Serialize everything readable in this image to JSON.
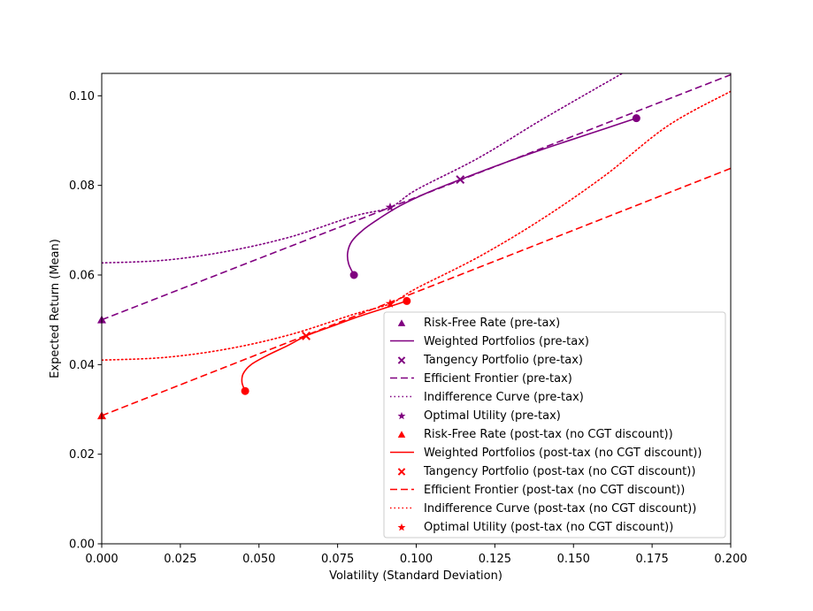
{
  "chart_data": {
    "type": "line",
    "title": "",
    "xlabel": "Volatility (Standard Deviation)",
    "ylabel": "Expected Return (Mean)",
    "xlim": [
      0.0,
      0.2
    ],
    "ylim": [
      0.0,
      0.105
    ],
    "xticks": [
      "0.000",
      "0.025",
      "0.050",
      "0.075",
      "0.100",
      "0.125",
      "0.150",
      "0.175",
      "0.200"
    ],
    "yticks": [
      "0.00",
      "0.02",
      "0.04",
      "0.06",
      "0.08",
      "0.10"
    ],
    "grid": false,
    "legend_position": "lower right",
    "colors": {
      "pre_tax": "#800080",
      "post_tax": "#ff0000"
    },
    "series": [
      {
        "name": "Risk-Free Rate (pre-tax)",
        "kind": "marker",
        "marker": "triangle",
        "color": "#800080",
        "points": [
          [
            0.0,
            0.05
          ]
        ]
      },
      {
        "name": "Weighted Portfolios (pre-tax)",
        "kind": "line",
        "style": "solid",
        "color": "#800080",
        "points": [
          [
            0.0802,
            0.06
          ],
          [
            0.0785,
            0.0625
          ],
          [
            0.0782,
            0.065
          ],
          [
            0.0795,
            0.0675
          ],
          [
            0.083,
            0.07
          ],
          [
            0.088,
            0.0725
          ],
          [
            0.095,
            0.0755
          ],
          [
            0.104,
            0.0785
          ],
          [
            0.114,
            0.0813
          ],
          [
            0.126,
            0.0845
          ],
          [
            0.14,
            0.088
          ],
          [
            0.155,
            0.0915
          ],
          [
            0.17,
            0.095
          ]
        ]
      },
      {
        "name": "Tangency Portfolio (pre-tax)",
        "kind": "marker",
        "marker": "x",
        "color": "#800080",
        "points": [
          [
            0.114,
            0.0813
          ]
        ]
      },
      {
        "name": "Efficient Frontier (pre-tax)",
        "kind": "line",
        "style": "dashed",
        "color": "#800080",
        "points": [
          [
            0.0,
            0.05
          ],
          [
            0.2,
            0.1047
          ]
        ]
      },
      {
        "name": "Indifference Curve (pre-tax)",
        "kind": "line",
        "style": "dotted",
        "color": "#800080",
        "points": [
          [
            0.0,
            0.0627
          ],
          [
            0.02,
            0.0633
          ],
          [
            0.04,
            0.0653
          ],
          [
            0.06,
            0.0685
          ],
          [
            0.08,
            0.0731
          ],
          [
            0.0917,
            0.0751
          ],
          [
            0.1,
            0.079
          ],
          [
            0.12,
            0.0862
          ],
          [
            0.14,
            0.0947
          ],
          [
            0.1655,
            0.105
          ]
        ]
      },
      {
        "name": "Optimal Utility (pre-tax)",
        "kind": "marker",
        "marker": "star",
        "color": "#800080",
        "points": [
          [
            0.0917,
            0.0751
          ]
        ]
      },
      {
        "name": "Risk-Free Rate (post-tax (no CGT discount))",
        "kind": "marker",
        "marker": "triangle",
        "color": "#ff0000",
        "points": [
          [
            0.0,
            0.0286
          ]
        ]
      },
      {
        "name": "Weighted Portfolios (post-tax (no CGT discount))",
        "kind": "line",
        "style": "solid",
        "color": "#ff0000",
        "points": [
          [
            0.0456,
            0.0341
          ],
          [
            0.0446,
            0.036
          ],
          [
            0.045,
            0.038
          ],
          [
            0.0475,
            0.04
          ],
          [
            0.0525,
            0.042
          ],
          [
            0.059,
            0.0442
          ],
          [
            0.065,
            0.0464
          ],
          [
            0.073,
            0.0485
          ],
          [
            0.082,
            0.0508
          ],
          [
            0.0917,
            0.053
          ],
          [
            0.097,
            0.0542
          ]
        ]
      },
      {
        "name": "Tangency Portfolio (post-tax (no CGT discount))",
        "kind": "marker",
        "marker": "x",
        "color": "#ff0000",
        "points": [
          [
            0.065,
            0.0464
          ]
        ]
      },
      {
        "name": "Efficient Frontier (post-tax (no CGT discount))",
        "kind": "line",
        "style": "dashed",
        "color": "#ff0000",
        "points": [
          [
            0.0,
            0.0286
          ],
          [
            0.2,
            0.0838
          ]
        ]
      },
      {
        "name": "Indifference Curve (post-tax (no CGT discount))",
        "kind": "line",
        "style": "dotted",
        "color": "#ff0000",
        "points": [
          [
            0.0,
            0.041
          ],
          [
            0.02,
            0.0416
          ],
          [
            0.04,
            0.0435
          ],
          [
            0.06,
            0.0467
          ],
          [
            0.08,
            0.0512
          ],
          [
            0.0917,
            0.0536
          ],
          [
            0.1,
            0.057
          ],
          [
            0.12,
            0.0641
          ],
          [
            0.14,
            0.0725
          ],
          [
            0.16,
            0.0822
          ],
          [
            0.18,
            0.0933
          ],
          [
            0.2,
            0.101
          ]
        ]
      },
      {
        "name": "Optimal Utility (post-tax (no CGT discount))",
        "kind": "marker",
        "marker": "star",
        "color": "#ff0000",
        "points": [
          [
            0.0917,
            0.0536
          ]
        ]
      }
    ]
  }
}
